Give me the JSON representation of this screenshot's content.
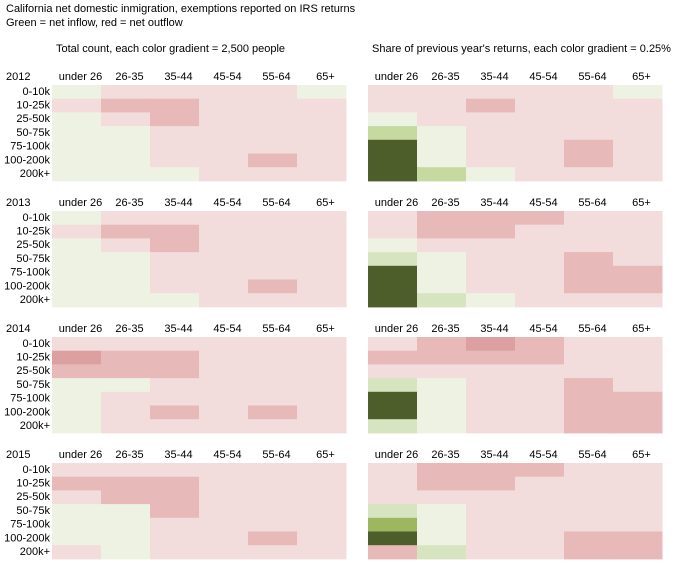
{
  "title": "California net domestic inmigration, exemptions reported on IRS returns",
  "subtitle": "Green = net inflow, red = net outflow",
  "palette": {
    "positive": [
      "#eef2e3",
      "#d7e4c0",
      "#c6d9a0",
      "#9db660",
      "#7b993b",
      "#4d5e2a"
    ],
    "negative": [
      "#f2dcdc",
      "#e8b9b9",
      "#dca0a0",
      "#d08888"
    ]
  },
  "chart_data": [
    {
      "type": "heatmap",
      "title": "Total count, each color gradient = 2,500 people",
      "label": "2012",
      "x_categories": [
        "under 26",
        "26-35",
        "35-44",
        "45-54",
        "55-64",
        "65+"
      ],
      "y_categories": [
        "0-10k",
        "10-25k",
        "25-50k",
        "50-75k",
        "75-100k",
        "100-200k",
        "200k+"
      ],
      "values": [
        [
          2500,
          -2500,
          -2500,
          -2500,
          -2500,
          2500
        ],
        [
          -2500,
          -5000,
          -5000,
          -2500,
          -2500,
          -2500
        ],
        [
          2500,
          -2500,
          -5000,
          -2500,
          -2500,
          -2500
        ],
        [
          2500,
          2500,
          -2500,
          -2500,
          -2500,
          -2500
        ],
        [
          2500,
          2500,
          -2500,
          -2500,
          -2500,
          -2500
        ],
        [
          2500,
          2500,
          -2500,
          -2500,
          -5000,
          -2500
        ],
        [
          2500,
          2500,
          2500,
          -2500,
          -2500,
          -2500
        ]
      ]
    },
    {
      "type": "heatmap",
      "title": "Share of previous year's returns, each color gradient = 0.25%",
      "x_categories": [
        "under 26",
        "26-35",
        "35-44",
        "45-54",
        "55-64",
        "65+"
      ],
      "values": [
        [
          -0.25,
          -0.25,
          -0.25,
          -0.25,
          -0.25,
          0.25
        ],
        [
          -0.25,
          -0.25,
          -0.5,
          -0.25,
          -0.25,
          -0.25
        ],
        [
          0.25,
          -0.25,
          -0.25,
          -0.25,
          -0.25,
          -0.25
        ],
        [
          0.75,
          0.25,
          -0.25,
          -0.25,
          -0.25,
          -0.25
        ],
        [
          1.5,
          0.25,
          -0.25,
          -0.25,
          -0.5,
          -0.25
        ],
        [
          1.5,
          0.25,
          -0.25,
          -0.25,
          -0.5,
          -0.25
        ],
        [
          1.5,
          0.75,
          0.25,
          -0.25,
          -0.25,
          -0.25
        ]
      ]
    },
    {
      "type": "heatmap",
      "label": "2013",
      "x_categories": [
        "under 26",
        "26-35",
        "35-44",
        "45-54",
        "55-64",
        "65+"
      ],
      "y_categories": [
        "0-10k",
        "10-25k",
        "25-50k",
        "50-75k",
        "75-100k",
        "100-200k",
        "200k+"
      ],
      "values": [
        [
          2500,
          -2500,
          -2500,
          -2500,
          -2500,
          -2500
        ],
        [
          -2500,
          -5000,
          -5000,
          -2500,
          -2500,
          -2500
        ],
        [
          2500,
          -2500,
          -5000,
          -2500,
          -2500,
          -2500
        ],
        [
          2500,
          2500,
          -2500,
          -2500,
          -2500,
          -2500
        ],
        [
          2500,
          2500,
          -2500,
          -2500,
          -2500,
          -2500
        ],
        [
          2500,
          2500,
          -2500,
          -2500,
          -5000,
          -2500
        ],
        [
          2500,
          2500,
          2500,
          -2500,
          -2500,
          -2500
        ]
      ]
    },
    {
      "type": "heatmap",
      "x_categories": [
        "under 26",
        "26-35",
        "35-44",
        "45-54",
        "55-64",
        "65+"
      ],
      "values": [
        [
          -0.25,
          -0.5,
          -0.5,
          -0.5,
          -0.25,
          -0.25
        ],
        [
          -0.25,
          -0.5,
          -0.5,
          -0.25,
          -0.25,
          -0.25
        ],
        [
          0.25,
          -0.25,
          -0.25,
          -0.25,
          -0.25,
          -0.25
        ],
        [
          0.5,
          0.25,
          -0.25,
          -0.25,
          -0.5,
          -0.25
        ],
        [
          1.5,
          0.25,
          -0.25,
          -0.25,
          -0.5,
          -0.5
        ],
        [
          1.5,
          0.25,
          -0.25,
          -0.25,
          -0.5,
          -0.5
        ],
        [
          1.5,
          0.5,
          0.25,
          -0.25,
          -0.25,
          -0.25
        ]
      ]
    },
    {
      "type": "heatmap",
      "label": "2014",
      "x_categories": [
        "under 26",
        "26-35",
        "35-44",
        "45-54",
        "55-64",
        "65+"
      ],
      "y_categories": [
        "0-10k",
        "10-25k",
        "25-50k",
        "50-75k",
        "75-100k",
        "100-200k",
        "200k+"
      ],
      "values": [
        [
          -2500,
          -2500,
          -2500,
          -2500,
          -2500,
          -2500
        ],
        [
          -7500,
          -5000,
          -5000,
          -2500,
          -2500,
          -2500
        ],
        [
          -5000,
          -5000,
          -5000,
          -2500,
          -2500,
          -2500
        ],
        [
          2500,
          2500,
          -2500,
          -2500,
          -2500,
          -2500
        ],
        [
          2500,
          -2500,
          -2500,
          -2500,
          -2500,
          -2500
        ],
        [
          2500,
          -2500,
          -5000,
          -2500,
          -5000,
          -2500
        ],
        [
          2500,
          -2500,
          -2500,
          -2500,
          -2500,
          -2500
        ]
      ]
    },
    {
      "type": "heatmap",
      "x_categories": [
        "under 26",
        "26-35",
        "35-44",
        "45-54",
        "55-64",
        "65+"
      ],
      "values": [
        [
          -0.25,
          -0.5,
          -0.75,
          -0.5,
          -0.25,
          -0.25
        ],
        [
          -0.5,
          -0.5,
          -0.5,
          -0.5,
          -0.25,
          -0.25
        ],
        [
          -0.25,
          -0.25,
          -0.25,
          -0.25,
          -0.25,
          -0.25
        ],
        [
          0.5,
          0.25,
          -0.25,
          -0.25,
          -0.5,
          -0.25
        ],
        [
          1.5,
          0.25,
          -0.25,
          -0.25,
          -0.5,
          -0.5
        ],
        [
          1.5,
          0.25,
          -0.25,
          -0.25,
          -0.5,
          -0.5
        ],
        [
          0.5,
          0.25,
          -0.25,
          -0.25,
          -0.5,
          -0.5
        ]
      ]
    },
    {
      "type": "heatmap",
      "label": "2015",
      "x_categories": [
        "under 26",
        "26-35",
        "35-44",
        "45-54",
        "55-64",
        "65+"
      ],
      "y_categories": [
        "0-10k",
        "10-25k",
        "25-50k",
        "50-75k",
        "75-100k",
        "100-200k",
        "200k+"
      ],
      "values": [
        [
          -2500,
          -2500,
          -2500,
          -2500,
          -2500,
          -2500
        ],
        [
          -5000,
          -5000,
          -5000,
          -2500,
          -2500,
          -2500
        ],
        [
          -2500,
          -5000,
          -5000,
          -2500,
          -2500,
          -2500
        ],
        [
          2500,
          2500,
          -5000,
          -2500,
          -2500,
          -2500
        ],
        [
          2500,
          2500,
          -2500,
          -2500,
          -2500,
          -2500
        ],
        [
          2500,
          2500,
          -2500,
          -2500,
          -5000,
          -2500
        ],
        [
          -2500,
          2500,
          -2500,
          -2500,
          -2500,
          -2500
        ]
      ]
    },
    {
      "type": "heatmap",
      "x_categories": [
        "under 26",
        "26-35",
        "35-44",
        "45-54",
        "55-64",
        "65+"
      ],
      "values": [
        [
          -0.25,
          -0.5,
          -0.5,
          -0.5,
          -0.25,
          -0.25
        ],
        [
          -0.25,
          -0.5,
          -0.5,
          -0.25,
          -0.25,
          -0.25
        ],
        [
          -0.25,
          -0.25,
          -0.25,
          -0.25,
          -0.25,
          -0.25
        ],
        [
          0.5,
          0.25,
          -0.25,
          -0.25,
          -0.25,
          -0.25
        ],
        [
          1,
          0.25,
          -0.25,
          -0.25,
          -0.25,
          -0.25
        ],
        [
          1.5,
          0.25,
          -0.25,
          -0.25,
          -0.5,
          -0.5
        ],
        [
          -0.5,
          0.5,
          -0.25,
          -0.25,
          -0.5,
          -0.5
        ]
      ]
    }
  ]
}
